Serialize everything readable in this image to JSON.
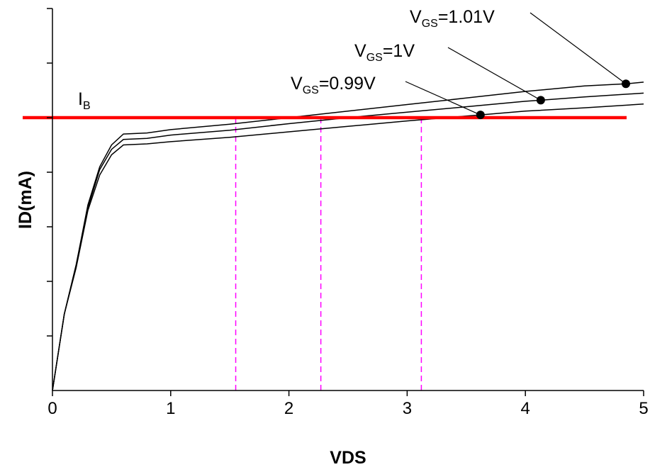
{
  "chart_data": {
    "type": "line",
    "xlabel": "VDS",
    "ylabel": "ID(mA)",
    "xlim": [
      0,
      5
    ],
    "ylim": [
      0,
      7
    ],
    "x_ticks": [
      "0",
      "1",
      "2",
      "3",
      "4",
      "5"
    ],
    "y_tick_count": 7,
    "y_tick_labels_shown": false,
    "grid": false,
    "series": [
      {
        "label_main": "V",
        "label_sub": "GS",
        "label_rest": "=1.01V",
        "color": "#000000",
        "points": [
          [
            0,
            0
          ],
          [
            0.1,
            1.4
          ],
          [
            0.2,
            2.3
          ],
          [
            0.3,
            3.4
          ],
          [
            0.4,
            4.1
          ],
          [
            0.5,
            4.5
          ],
          [
            0.6,
            4.7
          ],
          [
            0.8,
            4.72
          ],
          [
            1.0,
            4.78
          ],
          [
            1.5,
            4.88
          ],
          [
            2.0,
            5.0
          ],
          [
            2.5,
            5.12
          ],
          [
            3.0,
            5.24
          ],
          [
            3.5,
            5.36
          ],
          [
            4.0,
            5.48
          ],
          [
            4.5,
            5.58
          ],
          [
            4.85,
            5.62
          ],
          [
            5.0,
            5.65
          ]
        ],
        "marker": [
          4.85,
          5.62
        ]
      },
      {
        "label_main": "V",
        "label_sub": "GS",
        "label_rest": "=1V",
        "color": "#000000",
        "points": [
          [
            0,
            0
          ],
          [
            0.1,
            1.4
          ],
          [
            0.2,
            2.3
          ],
          [
            0.3,
            3.35
          ],
          [
            0.4,
            4.05
          ],
          [
            0.5,
            4.42
          ],
          [
            0.6,
            4.6
          ],
          [
            0.8,
            4.62
          ],
          [
            1.0,
            4.68
          ],
          [
            1.5,
            4.77
          ],
          [
            2.0,
            4.89
          ],
          [
            2.5,
            5.0
          ],
          [
            3.0,
            5.1
          ],
          [
            3.5,
            5.2
          ],
          [
            4.0,
            5.3
          ],
          [
            4.13,
            5.32
          ],
          [
            4.5,
            5.38
          ],
          [
            5.0,
            5.45
          ]
        ],
        "marker": [
          4.13,
          5.32
        ]
      },
      {
        "label_main": "V",
        "label_sub": "GS",
        "label_rest": "=0.99V",
        "color": "#000000",
        "points": [
          [
            0,
            0
          ],
          [
            0.1,
            1.4
          ],
          [
            0.2,
            2.25
          ],
          [
            0.3,
            3.3
          ],
          [
            0.4,
            3.95
          ],
          [
            0.5,
            4.32
          ],
          [
            0.6,
            4.5
          ],
          [
            0.8,
            4.52
          ],
          [
            1.0,
            4.56
          ],
          [
            1.5,
            4.64
          ],
          [
            2.0,
            4.74
          ],
          [
            2.5,
            4.84
          ],
          [
            3.0,
            4.94
          ],
          [
            3.62,
            5.05
          ],
          [
            4.0,
            5.12
          ],
          [
            4.5,
            5.18
          ],
          [
            5.0,
            5.25
          ]
        ],
        "marker": [
          3.62,
          5.05
        ]
      }
    ],
    "hline": {
      "label_main": "I",
      "label_sub": "B",
      "y": 5.0,
      "color": "#ff0000"
    },
    "vlines": [
      {
        "x": 1.55,
        "color": "#ff00ff"
      },
      {
        "x": 2.27,
        "color": "#ff00ff"
      },
      {
        "x": 3.12,
        "color": "#ff00ff"
      }
    ]
  }
}
